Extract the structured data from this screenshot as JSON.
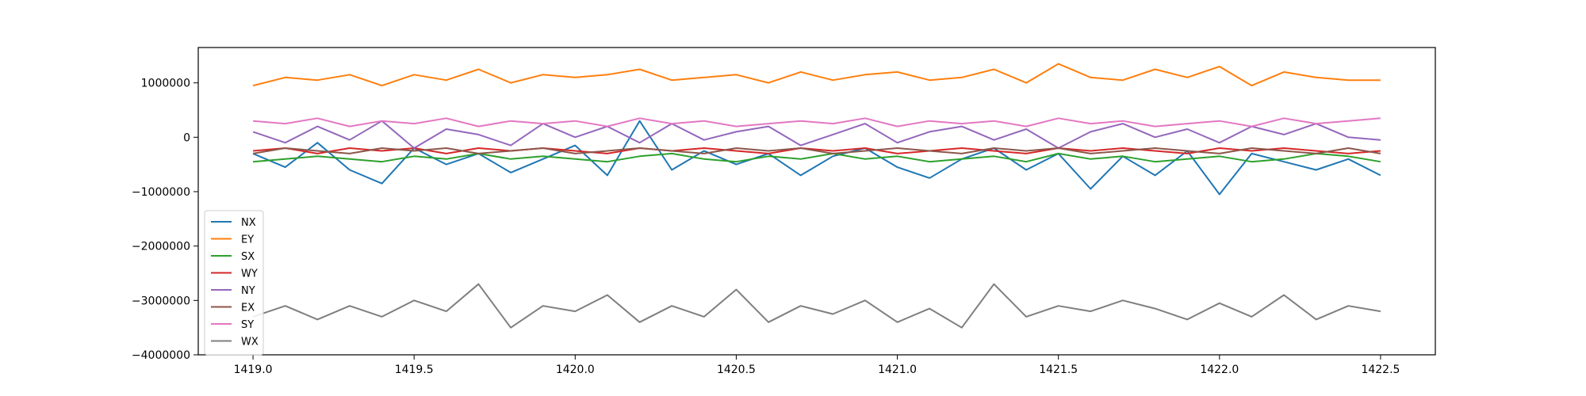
{
  "chart_data": {
    "type": "line",
    "title": "",
    "xlabel": "",
    "ylabel": "",
    "xlim": [
      1418.83,
      1422.67
    ],
    "ylim": [
      -4000000,
      1650000
    ],
    "grid": false,
    "legend_position": "lower-left",
    "x_ticks": [
      1419.0,
      1419.5,
      1420.0,
      1420.5,
      1421.0,
      1421.5,
      1422.0,
      1422.5
    ],
    "x_tick_labels": [
      "1419.0",
      "1419.5",
      "1420.0",
      "1420.5",
      "1421.0",
      "1421.5",
      "1422.0",
      "1422.5"
    ],
    "y_ticks": [
      1000000,
      0,
      -1000000,
      -2000000,
      -3000000,
      -4000000
    ],
    "y_tick_labels": [
      "1000000",
      "0",
      "−1000000",
      "−2000000",
      "−3000000",
      "−4000000"
    ],
    "x": [
      1419.0,
      1419.1,
      1419.2,
      1419.3,
      1419.4,
      1419.5,
      1419.6,
      1419.7,
      1419.8,
      1419.9,
      1420.0,
      1420.1,
      1420.2,
      1420.3,
      1420.4,
      1420.5,
      1420.6,
      1420.7,
      1420.8,
      1420.9,
      1421.0,
      1421.1,
      1421.2,
      1421.3,
      1421.4,
      1421.5,
      1421.6,
      1421.7,
      1421.8,
      1421.9,
      1422.0,
      1422.1,
      1422.2,
      1422.3,
      1422.4,
      1422.5
    ],
    "series": [
      {
        "name": "NX",
        "color": "#1f77b4",
        "values": [
          -300000,
          -550000,
          -100000,
          -600000,
          -850000,
          -200000,
          -500000,
          -300000,
          -650000,
          -400000,
          -150000,
          -700000,
          300000,
          -600000,
          -250000,
          -500000,
          -300000,
          -700000,
          -350000,
          -200000,
          -550000,
          -750000,
          -400000,
          -200000,
          -600000,
          -300000,
          -950000,
          -350000,
          -700000,
          -250000,
          -1050000,
          -300000,
          -450000,
          -600000,
          -400000,
          -700000
        ]
      },
      {
        "name": "EY",
        "color": "#ff7f0e",
        "values": [
          950000,
          1100000,
          1050000,
          1150000,
          950000,
          1150000,
          1050000,
          1250000,
          1000000,
          1150000,
          1100000,
          1150000,
          1250000,
          1050000,
          1100000,
          1150000,
          1000000,
          1200000,
          1050000,
          1150000,
          1200000,
          1050000,
          1100000,
          1250000,
          1000000,
          1350000,
          1100000,
          1050000,
          1250000,
          1100000,
          1300000,
          950000,
          1200000,
          1100000,
          1050000,
          1050000
        ]
      },
      {
        "name": "SX",
        "color": "#2ca02c",
        "values": [
          -450000,
          -400000,
          -350000,
          -400000,
          -450000,
          -350000,
          -400000,
          -300000,
          -400000,
          -350000,
          -400000,
          -450000,
          -350000,
          -300000,
          -400000,
          -450000,
          -350000,
          -400000,
          -300000,
          -400000,
          -350000,
          -450000,
          -400000,
          -350000,
          -450000,
          -300000,
          -400000,
          -350000,
          -450000,
          -400000,
          -350000,
          -450000,
          -400000,
          -300000,
          -350000,
          -450000
        ]
      },
      {
        "name": "WY",
        "color": "#d62728",
        "values": [
          -250000,
          -200000,
          -300000,
          -200000,
          -250000,
          -200000,
          -300000,
          -200000,
          -250000,
          -200000,
          -250000,
          -300000,
          -200000,
          -250000,
          -200000,
          -250000,
          -300000,
          -200000,
          -250000,
          -200000,
          -300000,
          -250000,
          -200000,
          -250000,
          -300000,
          -200000,
          -250000,
          -200000,
          -250000,
          -300000,
          -200000,
          -250000,
          -200000,
          -250000,
          -300000,
          -250000
        ]
      },
      {
        "name": "NY",
        "color": "#9467bd",
        "values": [
          100000,
          -100000,
          200000,
          -50000,
          300000,
          -200000,
          150000,
          50000,
          -150000,
          250000,
          0,
          200000,
          -100000,
          250000,
          -50000,
          100000,
          200000,
          -150000,
          50000,
          250000,
          -100000,
          100000,
          200000,
          -50000,
          150000,
          -200000,
          100000,
          250000,
          0,
          150000,
          -100000,
          200000,
          50000,
          250000,
          0,
          -50000
        ]
      },
      {
        "name": "EX",
        "color": "#8c564b",
        "values": [
          -300000,
          -200000,
          -250000,
          -300000,
          -200000,
          -250000,
          -200000,
          -300000,
          -250000,
          -200000,
          -300000,
          -250000,
          -200000,
          -250000,
          -300000,
          -200000,
          -250000,
          -200000,
          -300000,
          -250000,
          -200000,
          -250000,
          -300000,
          -200000,
          -250000,
          -200000,
          -300000,
          -250000,
          -200000,
          -250000,
          -300000,
          -200000,
          -250000,
          -300000,
          -200000,
          -300000
        ]
      },
      {
        "name": "SY",
        "color": "#e377c2",
        "values": [
          300000,
          250000,
          350000,
          200000,
          300000,
          250000,
          350000,
          200000,
          300000,
          250000,
          300000,
          200000,
          350000,
          250000,
          300000,
          200000,
          250000,
          300000,
          250000,
          350000,
          200000,
          300000,
          250000,
          300000,
          200000,
          350000,
          250000,
          300000,
          200000,
          250000,
          300000,
          200000,
          350000,
          250000,
          300000,
          350000
        ]
      },
      {
        "name": "WX",
        "color": "#7f7f7f",
        "values": [
          -3300000,
          -3100000,
          -3350000,
          -3100000,
          -3300000,
          -3000000,
          -3200000,
          -2700000,
          -3500000,
          -3100000,
          -3200000,
          -2900000,
          -3400000,
          -3100000,
          -3300000,
          -2800000,
          -3400000,
          -3100000,
          -3250000,
          -3000000,
          -3400000,
          -3150000,
          -3500000,
          -2700000,
          -3300000,
          -3100000,
          -3200000,
          -3000000,
          -3150000,
          -3350000,
          -3050000,
          -3300000,
          -2900000,
          -3350000,
          -3100000,
          -3200000
        ]
      }
    ]
  }
}
